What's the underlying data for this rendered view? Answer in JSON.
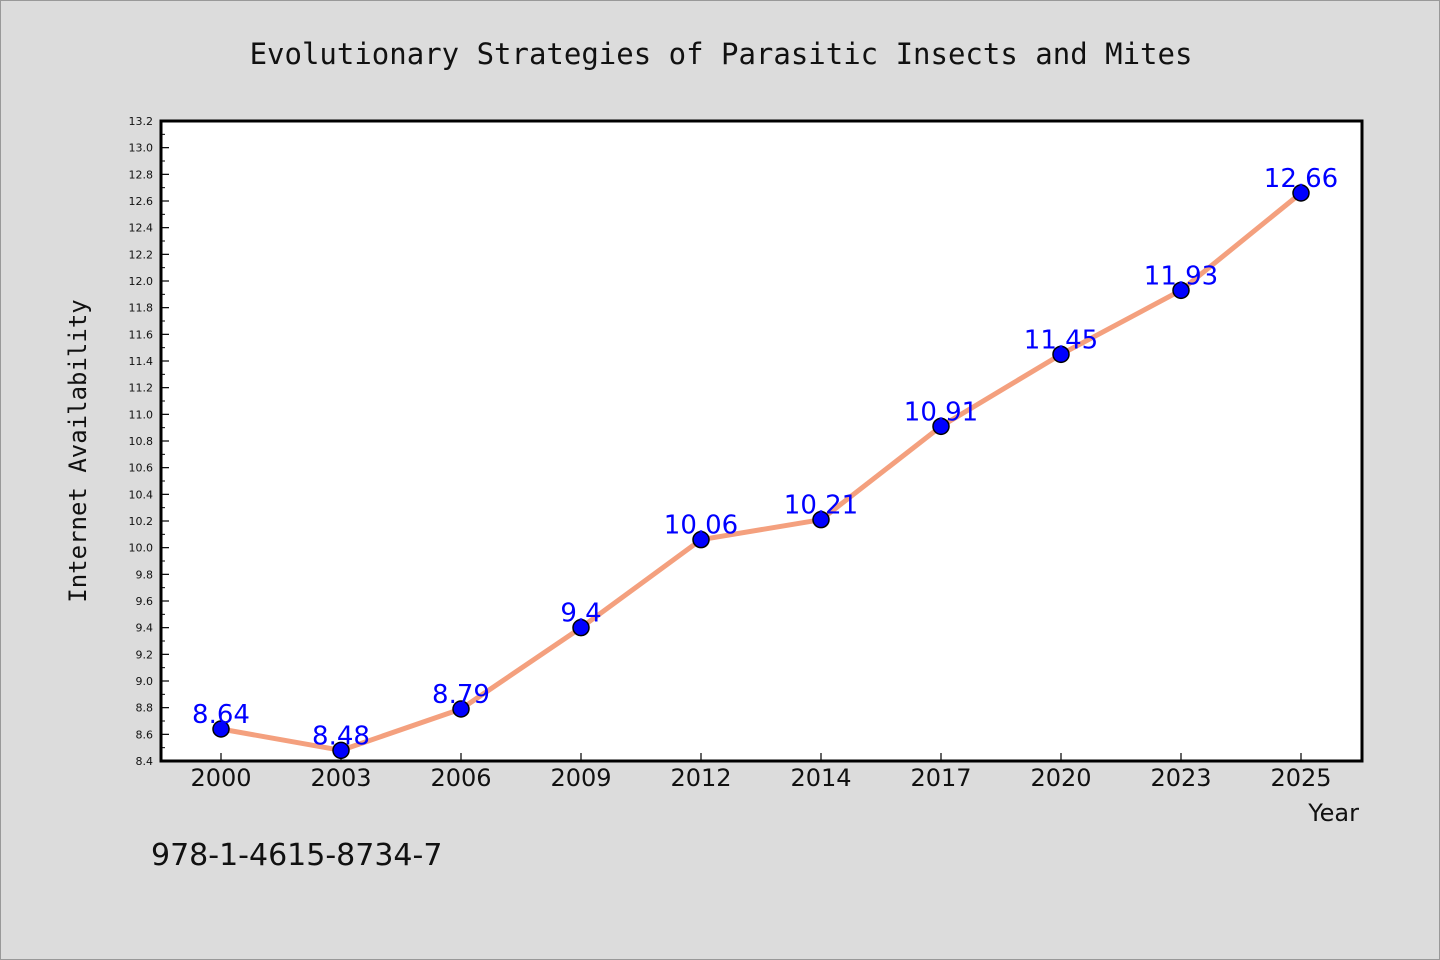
{
  "colors": {
    "background": "#dcdcdc",
    "plot_background": "#ffffff",
    "line": "#f4a07e",
    "marker": "#0000ff",
    "label": "#0000ff",
    "text": "#111111"
  },
  "chart_data": {
    "type": "line",
    "title": "Evolutionary Strategies of Parasitic Insects and Mites",
    "xlabel": "Year",
    "ylabel": "Internet Availability",
    "categories": [
      "2000",
      "2003",
      "2006",
      "2009",
      "2012",
      "2014",
      "2017",
      "2020",
      "2023",
      "2025"
    ],
    "series": [
      {
        "values": [
          8.64,
          8.48,
          8.79,
          9.4,
          10.06,
          10.21,
          10.91,
          11.45,
          11.93,
          12.66
        ],
        "labels": [
          "8.64",
          "8.48",
          "8.79",
          "9.4",
          "10.06",
          "10.21",
          "10.91",
          "11.45",
          "11.93",
          "12.66"
        ]
      }
    ],
    "ylim": [
      8.4,
      13.2
    ],
    "ytick_step": 0.2,
    "ytick_labels": [
      "8.4",
      "8.6",
      "8.8",
      "9.0",
      "9.2",
      "9.4",
      "9.6",
      "9.8",
      "10.0",
      "10.2",
      "10.4",
      "10.6",
      "10.8",
      "11.0",
      "11.2",
      "11.4",
      "11.6",
      "11.8",
      "12.0",
      "12.2",
      "12.4",
      "12.6",
      "12.8",
      "13.0",
      "13.2"
    ],
    "grid": false,
    "legend": "none"
  },
  "footer": {
    "isbn": "978-1-4615-8734-7"
  }
}
